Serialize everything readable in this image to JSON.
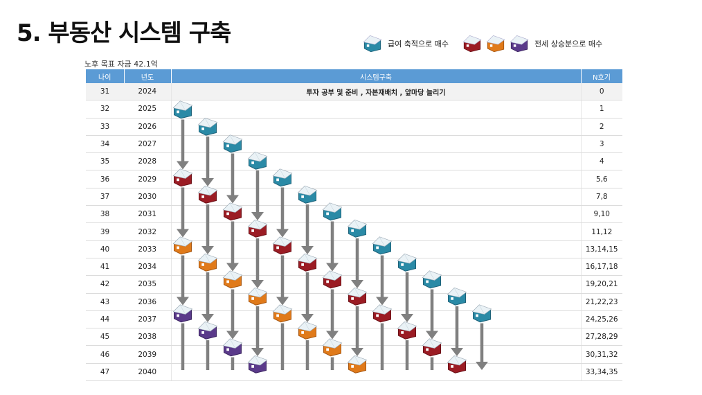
{
  "page": {
    "title": "5. 부동산 시스템 구축",
    "subtitle": "노후 목표 자금 42.1억"
  },
  "legend": {
    "salary_label": "급여 축적으로 매수",
    "jeonse_label": "전세 상승분으로 매수",
    "salary_color": "#2a8aa6",
    "jeonse_colors": [
      "#9b1c24",
      "#e07a1a",
      "#5a3a8a"
    ]
  },
  "table": {
    "headers": [
      "나이",
      "년도",
      "시스템구축",
      "N호기"
    ],
    "first_row_text": "투자 공부 및 준비 ,  자본재배치 , 앞마당 늘리기",
    "rows": [
      {
        "age": "31",
        "year": "2024",
        "n": "0"
      },
      {
        "age": "32",
        "year": "2025",
        "n": "1"
      },
      {
        "age": "33",
        "year": "2026",
        "n": "2"
      },
      {
        "age": "34",
        "year": "2027",
        "n": "3"
      },
      {
        "age": "35",
        "year": "2028",
        "n": "4"
      },
      {
        "age": "36",
        "year": "2029",
        "n": "5,6"
      },
      {
        "age": "37",
        "year": "2030",
        "n": "7,8"
      },
      {
        "age": "38",
        "year": "2031",
        "n": "9,10"
      },
      {
        "age": "39",
        "year": "2032",
        "n": "11,12"
      },
      {
        "age": "40",
        "year": "2033",
        "n": "13,14,15"
      },
      {
        "age": "41",
        "year": "2034",
        "n": "16,17,18"
      },
      {
        "age": "42",
        "year": "2035",
        "n": "19,20,21"
      },
      {
        "age": "43",
        "year": "2036",
        "n": "21,22,23"
      },
      {
        "age": "44",
        "year": "2037",
        "n": "24,25,26"
      },
      {
        "age": "45",
        "year": "2038",
        "n": "27,28,29"
      },
      {
        "age": "46",
        "year": "2039",
        "n": "30,31,32"
      },
      {
        "age": "47",
        "year": "2040",
        "n": "33,34,35"
      }
    ]
  },
  "colors": {
    "header_bg": "#5b9bd5",
    "arrow": "#808080"
  }
}
